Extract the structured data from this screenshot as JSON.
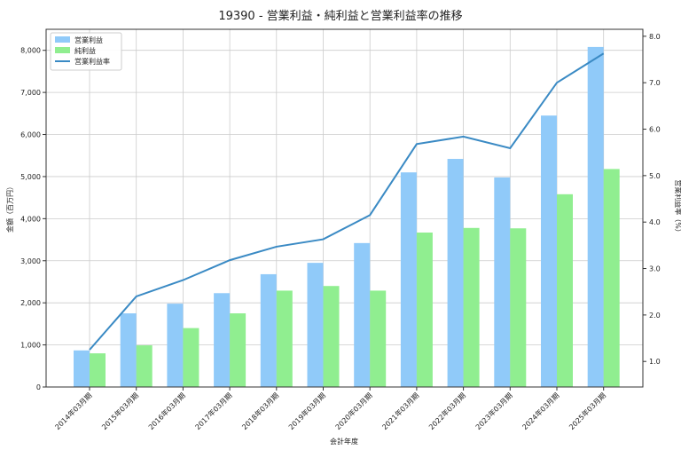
{
  "chart_data": {
    "type": "bar",
    "title": "19390 - 営業利益・純利益と営業利益率の推移",
    "xlabel": "会計年度",
    "ylabel": "金額（百万円）",
    "y2label": "営業利益率（%）",
    "ylim": [
      0,
      8500
    ],
    "y2lim": [
      0.45,
      8.15
    ],
    "yticks": [
      0,
      1000,
      2000,
      3000,
      4000,
      5000,
      6000,
      7000,
      8000
    ],
    "yticklabels": [
      "0",
      "1,000",
      "2,000",
      "3,000",
      "4,000",
      "5,000",
      "6,000",
      "7,000",
      "8,000"
    ],
    "y2ticks": [
      1.0,
      2.0,
      3.0,
      4.0,
      5.0,
      6.0,
      7.0,
      8.0
    ],
    "y2ticklabels": [
      "1.0",
      "2.0",
      "3.0",
      "4.0",
      "5.0",
      "6.0",
      "7.0",
      "8.0"
    ],
    "grid": true,
    "legend_position": "top-left",
    "categories": [
      "2014年03月期",
      "2015年03月期",
      "2016年03月期",
      "2017年03月期",
      "2018年03月期",
      "2019年03月期",
      "2020年03月期",
      "2021年03月期",
      "2022年03月期",
      "2023年03月期",
      "2024年03月期",
      "2025年03月期"
    ],
    "series": [
      {
        "name": "営業利益",
        "kind": "bar",
        "axis": "left",
        "color": "#90caf9",
        "values": [
          870,
          1750,
          1980,
          2230,
          2680,
          2950,
          3420,
          5100,
          5420,
          4980,
          6450,
          8080
        ]
      },
      {
        "name": "純利益",
        "kind": "bar",
        "axis": "left",
        "color": "#90ee90",
        "values": [
          800,
          990,
          1400,
          1750,
          2290,
          2400,
          2290,
          3670,
          3780,
          3770,
          4580,
          5180
        ]
      },
      {
        "name": "営業利益率",
        "kind": "line",
        "axis": "right",
        "color": "#3a8ac4",
        "values": [
          1.25,
          2.4,
          2.75,
          3.18,
          3.47,
          3.63,
          4.15,
          5.68,
          5.84,
          5.59,
          7.0,
          7.63
        ]
      }
    ]
  }
}
